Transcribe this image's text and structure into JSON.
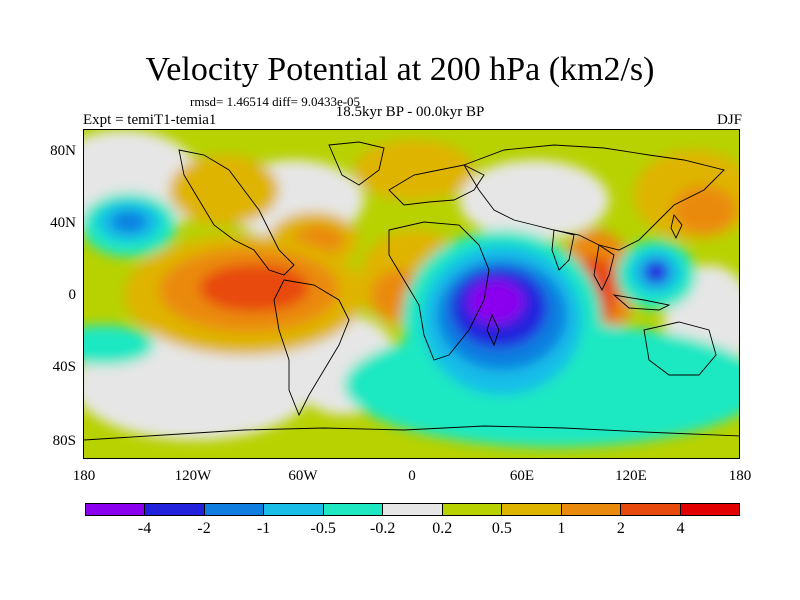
{
  "title": "Velocity Potential at 200 hPa (km2/s)",
  "stats": "rmsd= 1.46514 diff= 9.0433e-05",
  "experiment": "Expt = temiT1-temia1",
  "period": "18.5kyr BP - 00.0kyr BP",
  "season": "DJF",
  "y_ticks": [
    "80N",
    "40N",
    "0",
    "40S",
    "80S"
  ],
  "x_ticks": [
    "180",
    "120W",
    "60W",
    "0",
    "60E",
    "120E",
    "180"
  ],
  "colorbar": {
    "colors": [
      "#8b00ee",
      "#2222dd",
      "#0f7ee0",
      "#19bde8",
      "#1ee8c2",
      "#e6e6e6",
      "#b7d200",
      "#dfb400",
      "#ea8a0c",
      "#e8490c",
      "#e20000"
    ],
    "labels": [
      "-4",
      "-2",
      "-1",
      "-0.5",
      "-0.2",
      "0.2",
      "0.5",
      "1",
      "2",
      "4"
    ]
  }
}
